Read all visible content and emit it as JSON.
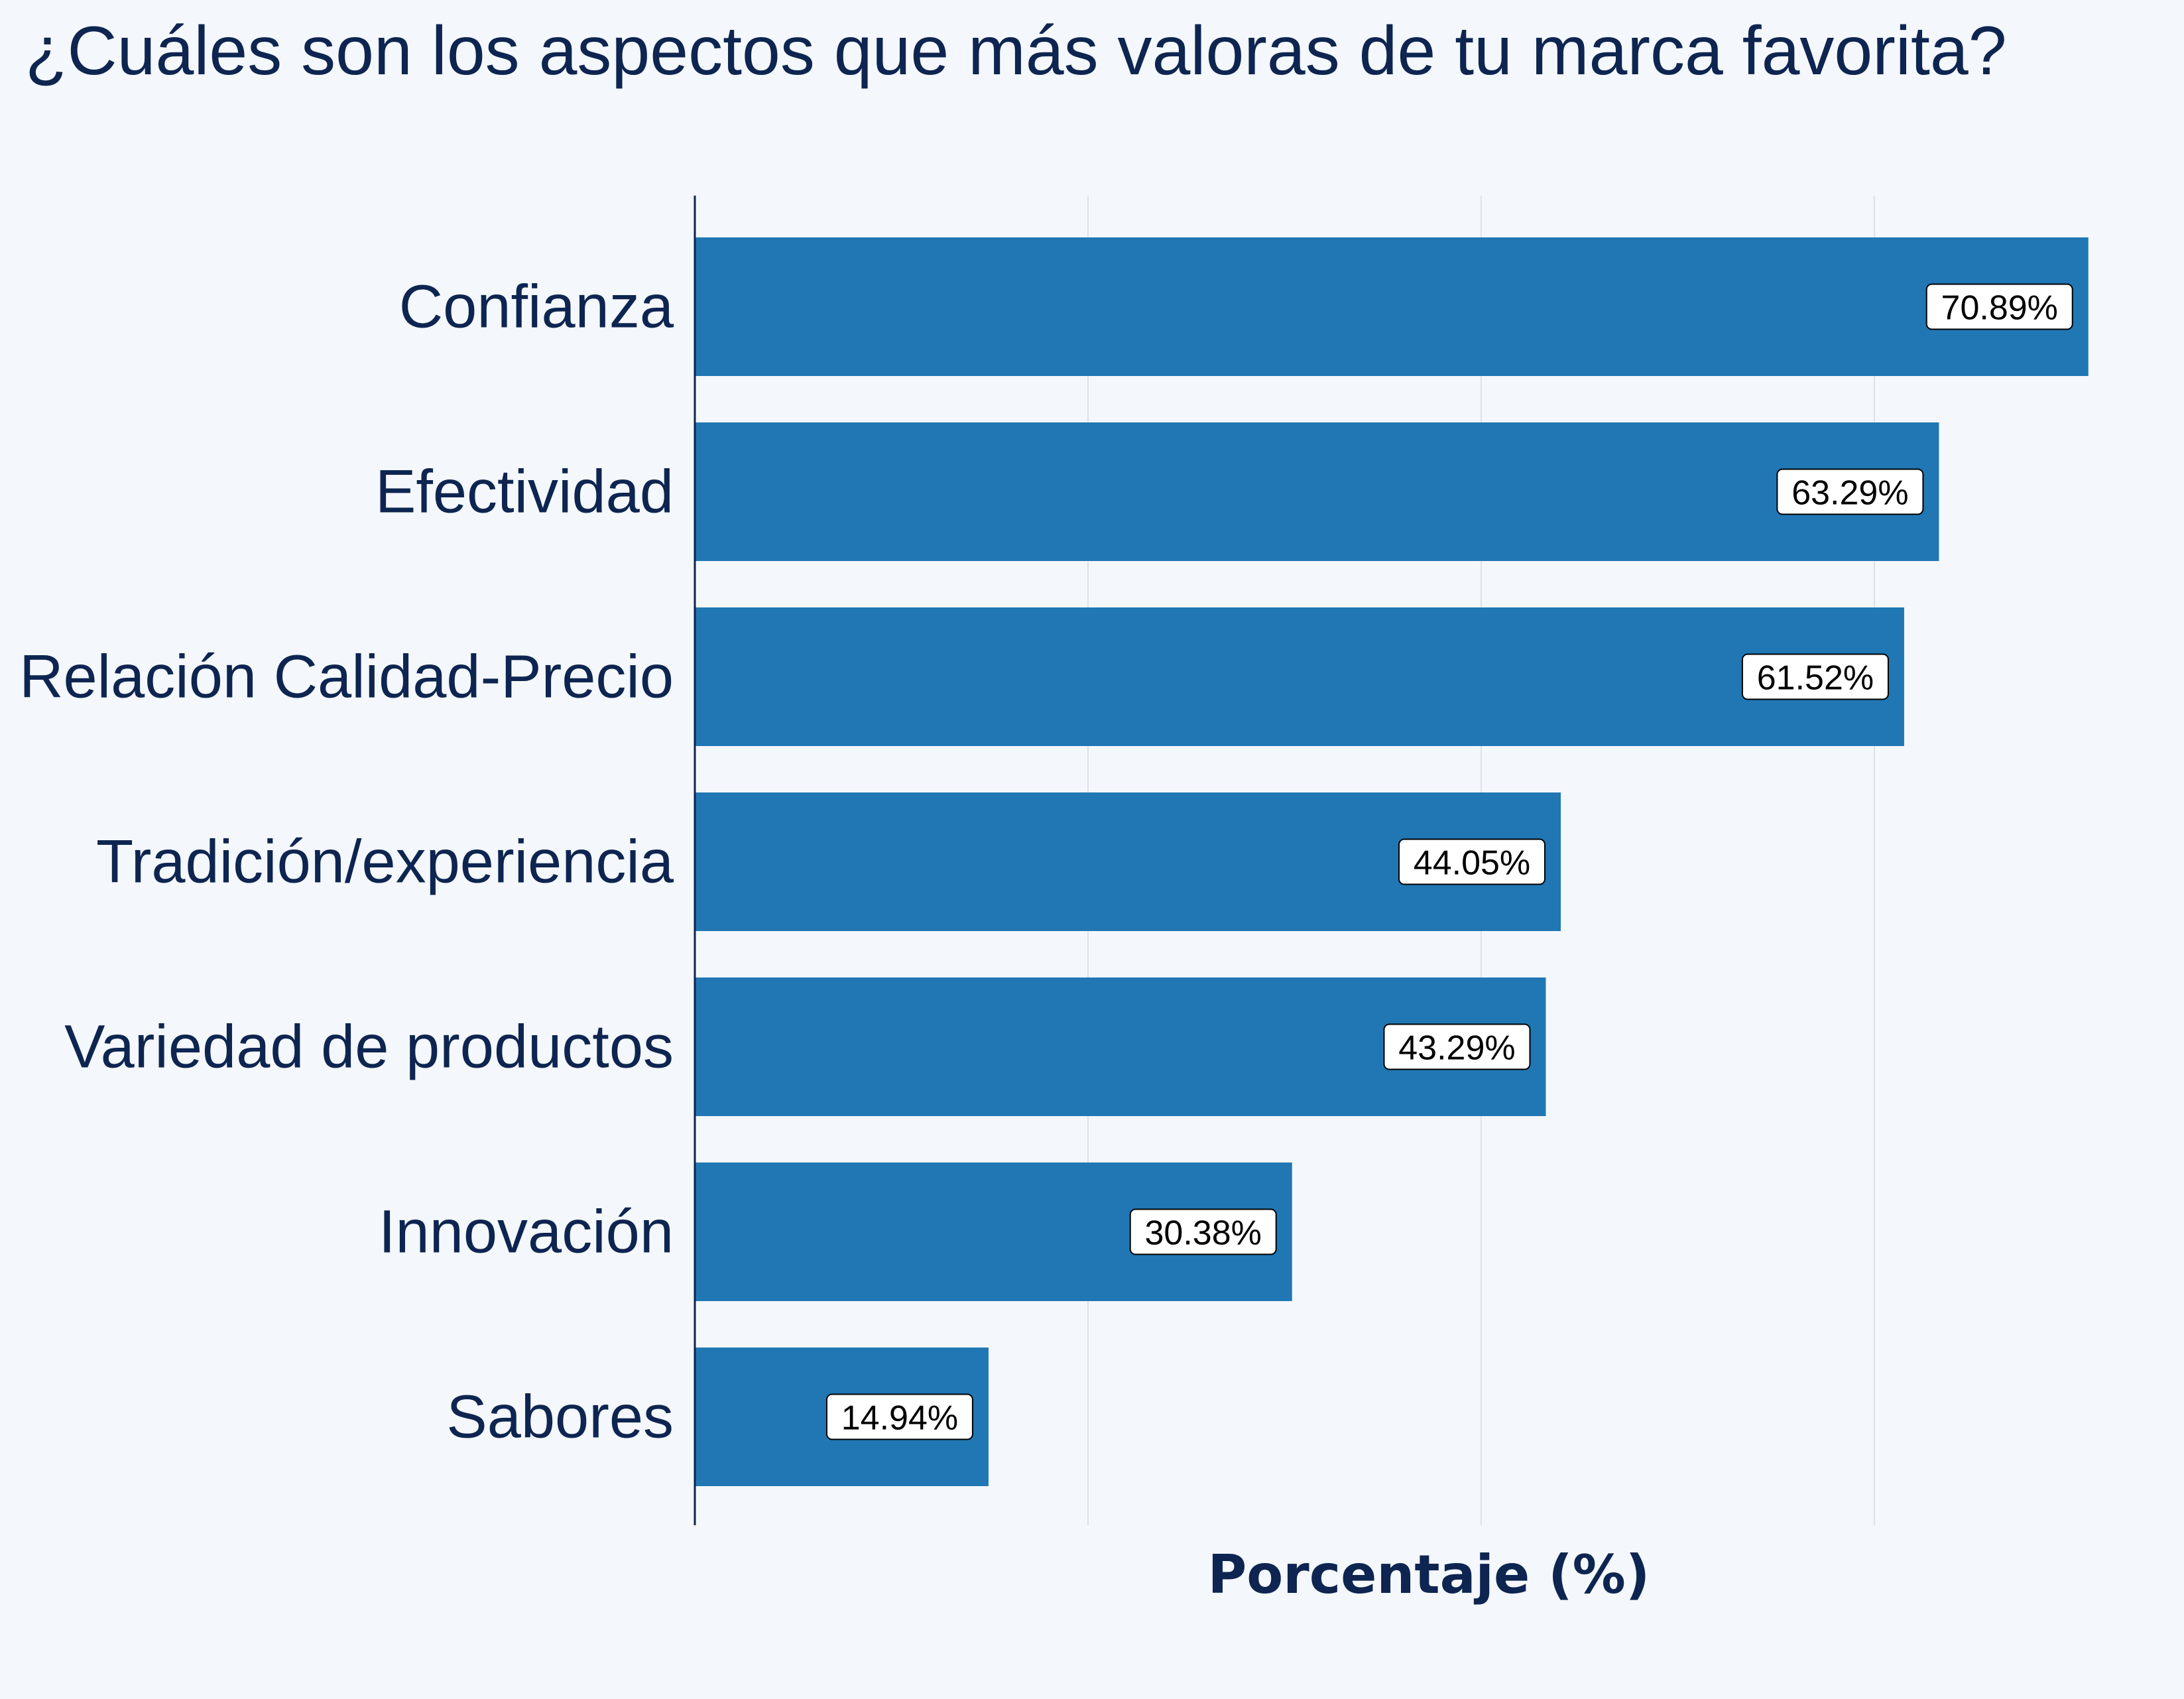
{
  "chart_data": {
    "type": "bar",
    "orientation": "horizontal",
    "title": "¿Cuáles son los aspectos que más valoras de tu marca favorita?",
    "xlabel": "Porcentaje (%)",
    "ylabel": "",
    "categories": [
      "Confianza",
      "Efectividad",
      "Relación Calidad-Precio",
      "Tradición/experiencia",
      "Variedad de productos",
      "Innovación",
      "Sabores"
    ],
    "values": [
      70.89,
      63.29,
      61.52,
      44.05,
      43.29,
      30.38,
      14.94
    ],
    "data_labels": [
      "70.89%",
      "63.29%",
      "61.52%",
      "44.05%",
      "43.29%",
      "30.38%",
      "14.94%"
    ],
    "xlim": [
      0,
      71
    ],
    "x_gridlines": [
      20,
      40,
      60
    ],
    "grid": true,
    "x_tick_labels_shown": false,
    "legend": "none",
    "bar_color": "#2077b4",
    "text_color": "#0d2550",
    "background_color": "#f4f7fb"
  }
}
